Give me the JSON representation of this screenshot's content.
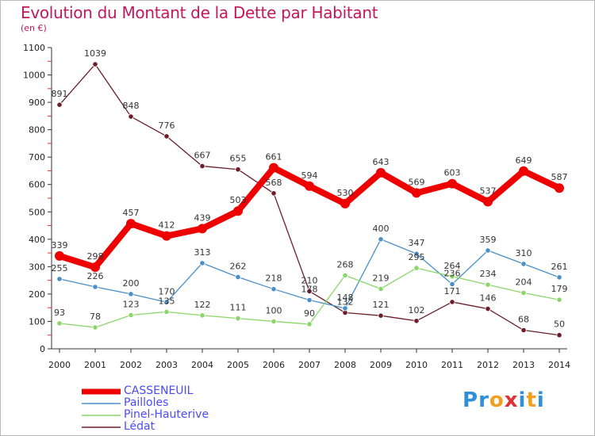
{
  "title": "Evolution du Montant de la Dette par Habitant",
  "subtitle": "(en €)",
  "logo": "Proxiti",
  "chart_data": {
    "type": "line",
    "categories": [
      "2000",
      "2001",
      "2002",
      "2003",
      "2004",
      "2005",
      "2006",
      "2007",
      "2008",
      "2009",
      "2010",
      "2011",
      "2012",
      "2013",
      "2014"
    ],
    "ylim": [
      0,
      1100
    ],
    "yticks": [
      0,
      100,
      200,
      300,
      400,
      500,
      600,
      700,
      800,
      900,
      1000,
      1100
    ],
    "grid": false,
    "legend": "bottom-left",
    "series": [
      {
        "name": "CASSENEUIL",
        "color": "#ee0000",
        "values": [
          339,
          298,
          457,
          412,
          439,
          503,
          661,
          594,
          530,
          643,
          569,
          603,
          537,
          649,
          587
        ]
      },
      {
        "name": "Pailloles",
        "color": "#4a90c8",
        "values": [
          255,
          226,
          200,
          170,
          313,
          262,
          218,
          178,
          148,
          400,
          347,
          236,
          359,
          310,
          261
        ]
      },
      {
        "name": "Pinel-Hauterive",
        "color": "#8ad66a",
        "values": [
          93,
          78,
          123,
          135,
          122,
          111,
          100,
          90,
          268,
          219,
          295,
          264,
          234,
          204,
          179
        ]
      },
      {
        "name": "Lédat",
        "color": "#6b1d2a",
        "values": [
          891,
          1039,
          848,
          776,
          667,
          655,
          568,
          210,
          132,
          121,
          102,
          171,
          146,
          68,
          50
        ]
      }
    ]
  }
}
